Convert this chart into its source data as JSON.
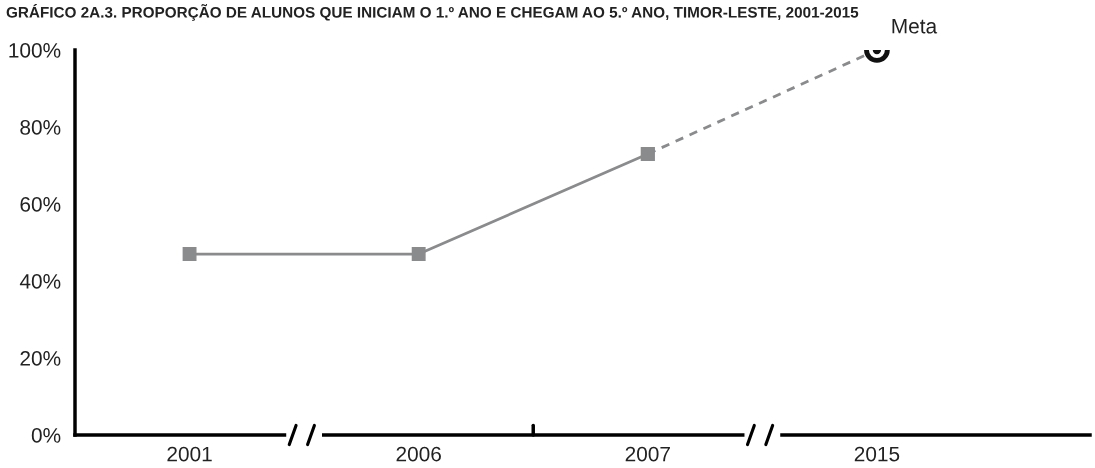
{
  "chart_data": {
    "type": "line",
    "title": "GRÁFICO 2A.3. PROPORÇÃO DE ALUNOS QUE INICIAM O 1.º ANO E CHEGAM AO 5.º ANO, TIMOR-LESTE, 2001-2015",
    "categories": [
      "2001",
      "2006",
      "2007",
      "2015"
    ],
    "series": [
      {
        "color": "#8a8b8d",
        "values": [
          47,
          47,
          73,
          null
        ],
        "marker": "square",
        "line_style": "solid"
      },
      {
        "color": "#8a8b8d",
        "values": [
          null,
          null,
          73,
          100
        ],
        "marker": "square",
        "line_style": "dashed"
      },
      {
        "type": "scatter",
        "color": "#111111",
        "values": [
          null,
          null,
          null,
          100
        ],
        "marker": "circle"
      }
    ],
    "ylim": [
      0,
      100
    ],
    "yticks": [
      {
        "value": 0,
        "label": "0%"
      },
      {
        "value": 20,
        "label": "20%"
      },
      {
        "value": 40,
        "label": "40%"
      },
      {
        "value": 60,
        "label": "60%"
      },
      {
        "value": 80,
        "label": "80%"
      },
      {
        "value": 100,
        "label": "100%"
      }
    ],
    "annotations": [
      {
        "text": "Meta",
        "x": "2015",
        "y": 100
      }
    ],
    "grid": false,
    "legend": false
  }
}
